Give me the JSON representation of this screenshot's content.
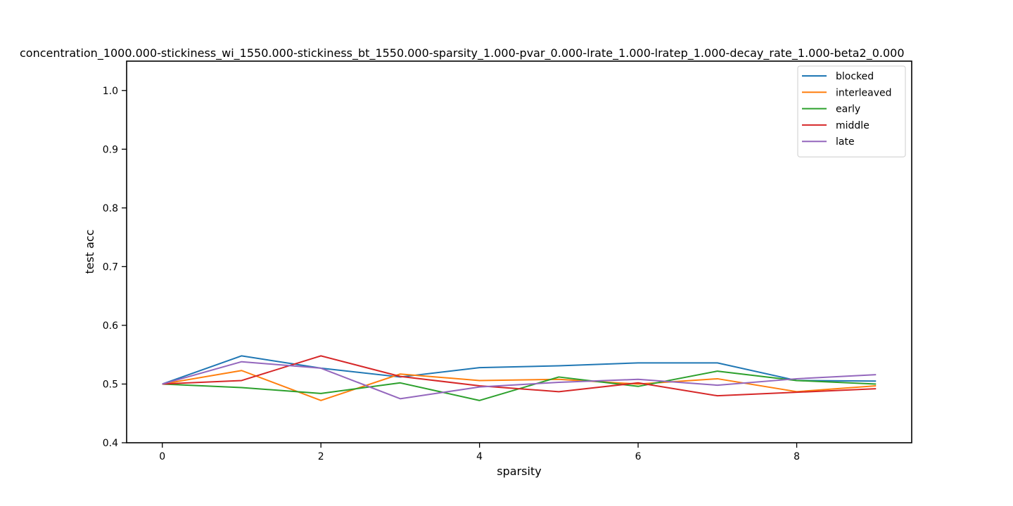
{
  "chart_data": {
    "type": "line",
    "title": "concentration_1000.000-stickiness_wi_1550.000-stickiness_bt_1550.000-sparsity_1.000-pvar_0.000-lrate_1.000-lratep_1.000-decay_rate_1.000-beta2_0.000",
    "xlabel": "sparsity",
    "ylabel": "test acc",
    "xlim": [
      -0.45,
      9.45
    ],
    "ylim": [
      0.4,
      1.05
    ],
    "x_ticks": [
      0,
      2,
      4,
      6,
      8
    ],
    "y_ticks": [
      0.4,
      0.5,
      0.6,
      0.7,
      0.8,
      0.9,
      1.0
    ],
    "grid": false,
    "legend_position": "top-right",
    "x": [
      0,
      1,
      2,
      3,
      4,
      5,
      6,
      7,
      8,
      9
    ],
    "series": [
      {
        "name": "blocked",
        "color": "#1f77b4",
        "values": [
          0.5,
          0.548,
          0.527,
          0.512,
          0.528,
          0.531,
          0.536,
          0.536,
          0.506,
          0.505
        ]
      },
      {
        "name": "interleaved",
        "color": "#ff7f0e",
        "values": [
          0.5,
          0.523,
          0.472,
          0.517,
          0.506,
          0.508,
          0.5,
          0.509,
          0.487,
          0.497
        ]
      },
      {
        "name": "early",
        "color": "#2ca02c",
        "values": [
          0.5,
          0.494,
          0.484,
          0.502,
          0.472,
          0.512,
          0.496,
          0.522,
          0.506,
          0.5
        ]
      },
      {
        "name": "middle",
        "color": "#d62728",
        "values": [
          0.5,
          0.506,
          0.548,
          0.513,
          0.497,
          0.487,
          0.502,
          0.48,
          0.486,
          0.492
        ]
      },
      {
        "name": "late",
        "color": "#9467bd",
        "values": [
          0.5,
          0.538,
          0.527,
          0.475,
          0.495,
          0.503,
          0.508,
          0.498,
          0.509,
          0.516
        ]
      }
    ]
  }
}
